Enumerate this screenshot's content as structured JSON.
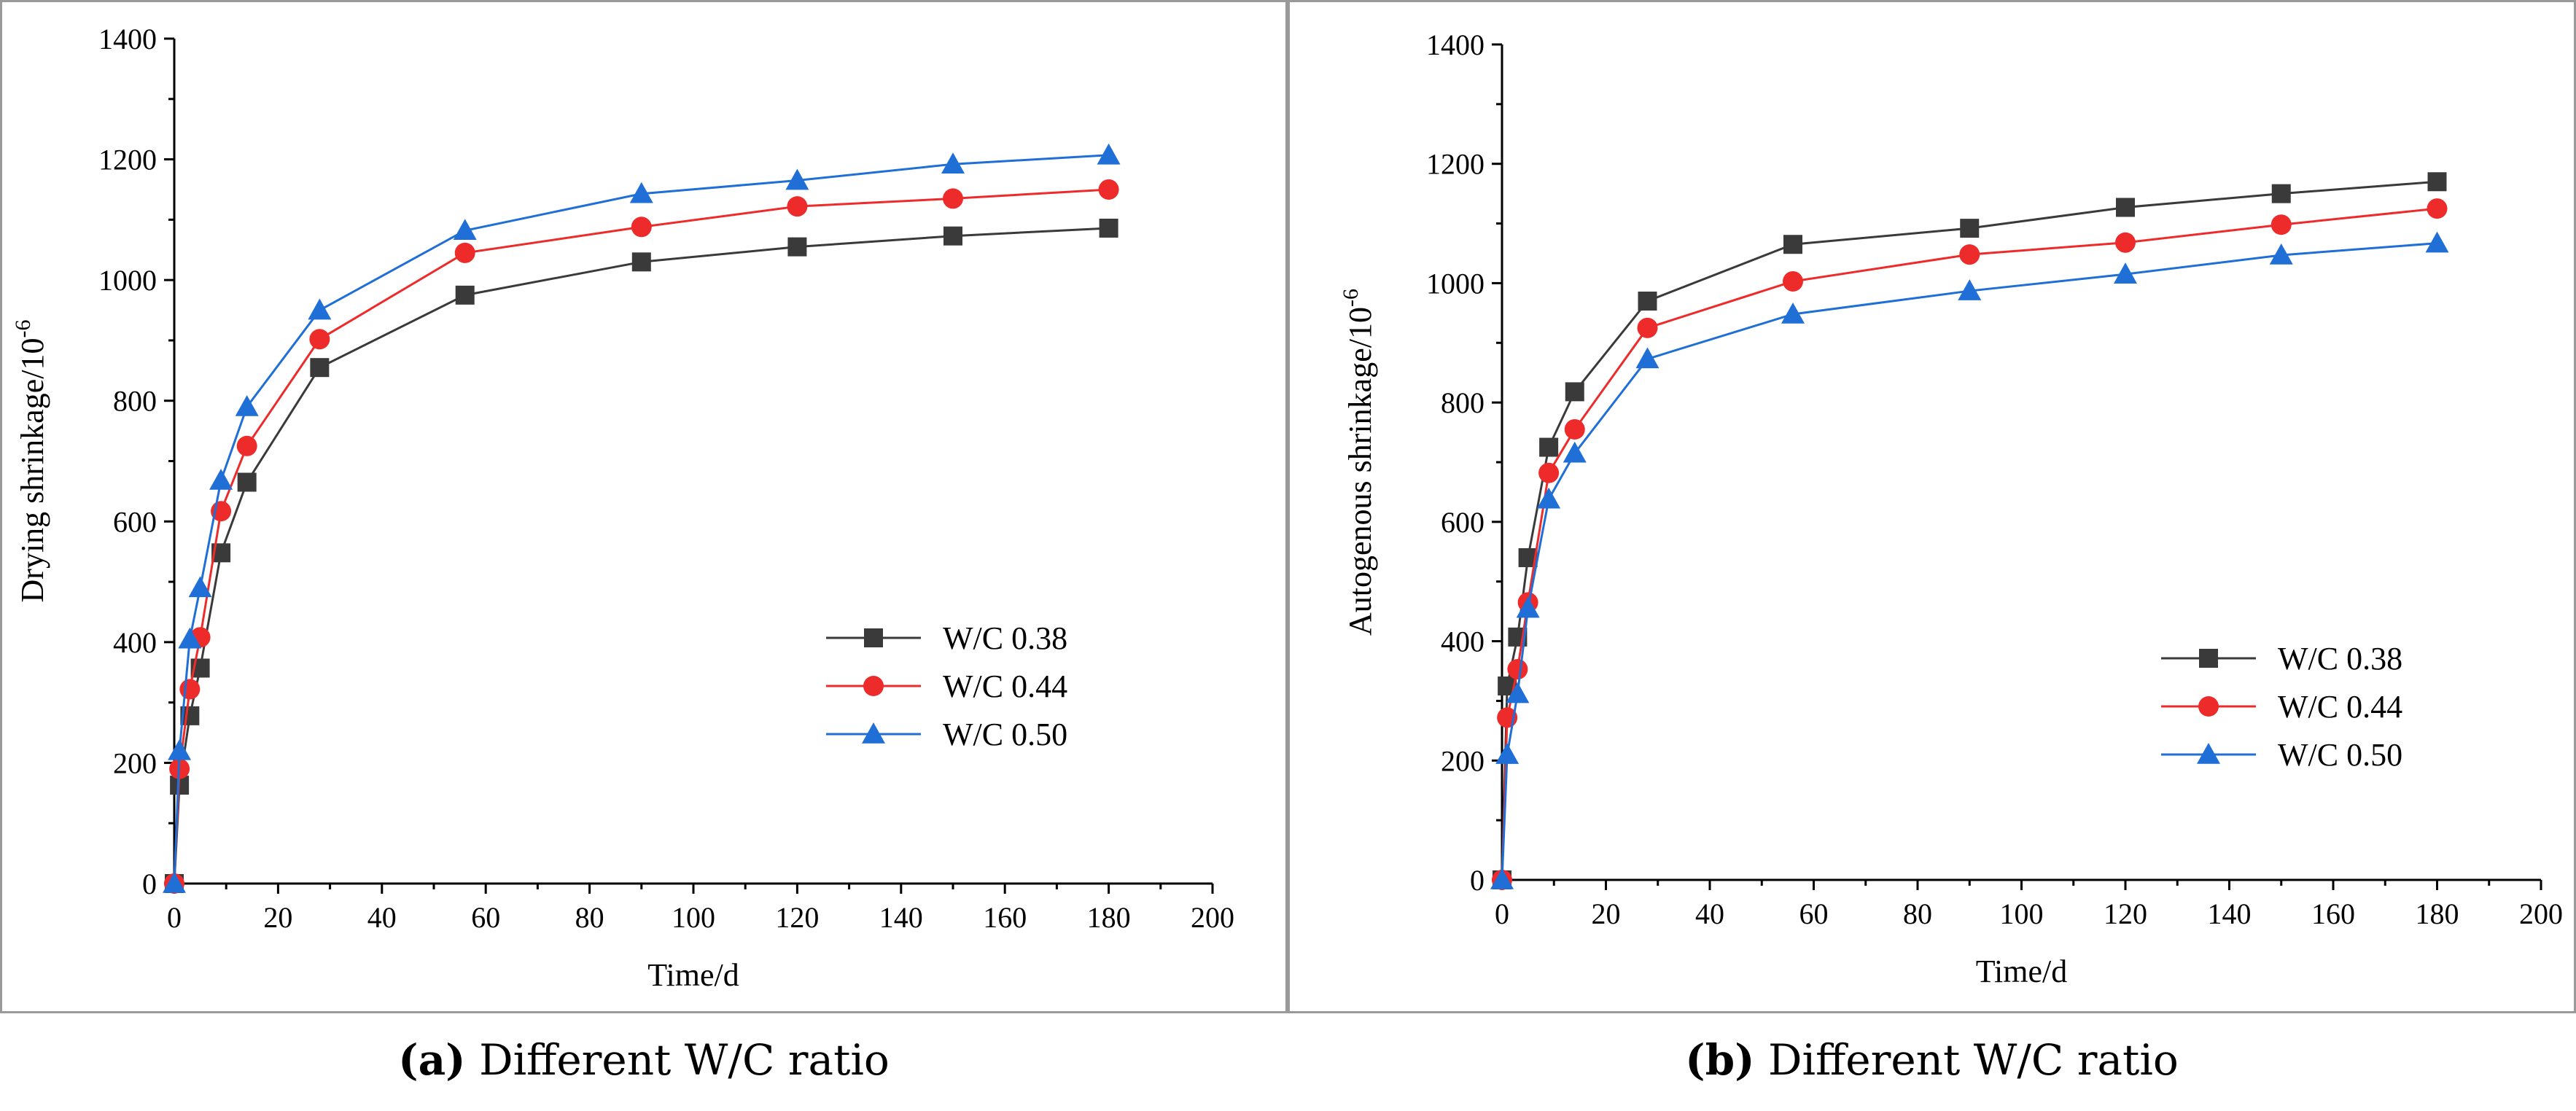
{
  "colors": {
    "w038": "#3a3a3a",
    "w044": "#ee2b2b",
    "w050": "#1f6fd6"
  },
  "chart_data": [
    {
      "type": "line",
      "caption_label": "(a)",
      "caption_text": "Different W/C ratio",
      "xlabel": "Time/d",
      "ylabel_base": "Drying shrinkage/10",
      "ylabel_exp": "-6",
      "xlim": [
        0,
        200
      ],
      "ylim": [
        0,
        1400
      ],
      "xticks": [
        0,
        20,
        40,
        60,
        80,
        100,
        120,
        140,
        160,
        180,
        200
      ],
      "yticks": [
        0,
        200,
        400,
        600,
        800,
        1000,
        1200,
        1400
      ],
      "x": [
        0,
        1,
        3,
        5,
        9,
        14,
        28,
        56,
        90,
        120,
        150,
        180
      ],
      "legend_position": "center-right",
      "series": [
        {
          "name": "W/C 0.38",
          "marker": "square",
          "color_key": "w038",
          "values": [
            0,
            163,
            278,
            357,
            548,
            665,
            855,
            975,
            1030,
            1055,
            1073,
            1086
          ]
        },
        {
          "name": "W/C 0.44",
          "marker": "circle",
          "color_key": "w044",
          "values": [
            0,
            190,
            322,
            408,
            617,
            725,
            902,
            1045,
            1088,
            1122,
            1135,
            1150
          ]
        },
        {
          "name": "W/C 0.50",
          "marker": "triangle",
          "color_key": "w050",
          "values": [
            0,
            220,
            405,
            490,
            668,
            790,
            950,
            1082,
            1143,
            1165,
            1192,
            1207
          ]
        }
      ]
    },
    {
      "type": "line",
      "caption_label": "(b)",
      "caption_text": "Different W/C ratio",
      "xlabel": "Time/d",
      "ylabel_base": "Autogenous shrinkage/10",
      "ylabel_exp": "-6",
      "xlim": [
        0,
        200
      ],
      "ylim": [
        0,
        1400
      ],
      "xticks": [
        0,
        20,
        40,
        60,
        80,
        100,
        120,
        140,
        160,
        180,
        200
      ],
      "yticks": [
        0,
        200,
        400,
        600,
        800,
        1000,
        1200,
        1400
      ],
      "x": [
        0,
        1,
        3,
        5,
        9,
        14,
        28,
        56,
        90,
        120,
        150,
        180
      ],
      "legend_position": "center-right",
      "series": [
        {
          "name": "W/C 0.38",
          "marker": "square",
          "color_key": "w038",
          "values": [
            0,
            325,
            407,
            540,
            725,
            818,
            970,
            1065,
            1092,
            1127,
            1150,
            1170
          ]
        },
        {
          "name": "W/C 0.44",
          "marker": "circle",
          "color_key": "w044",
          "values": [
            0,
            272,
            353,
            465,
            682,
            755,
            925,
            1003,
            1048,
            1068,
            1098,
            1125
          ]
        },
        {
          "name": "W/C 0.50",
          "marker": "triangle",
          "color_key": "w050",
          "values": [
            0,
            210,
            312,
            455,
            638,
            715,
            873,
            948,
            987,
            1015,
            1047,
            1067
          ]
        }
      ]
    }
  ]
}
